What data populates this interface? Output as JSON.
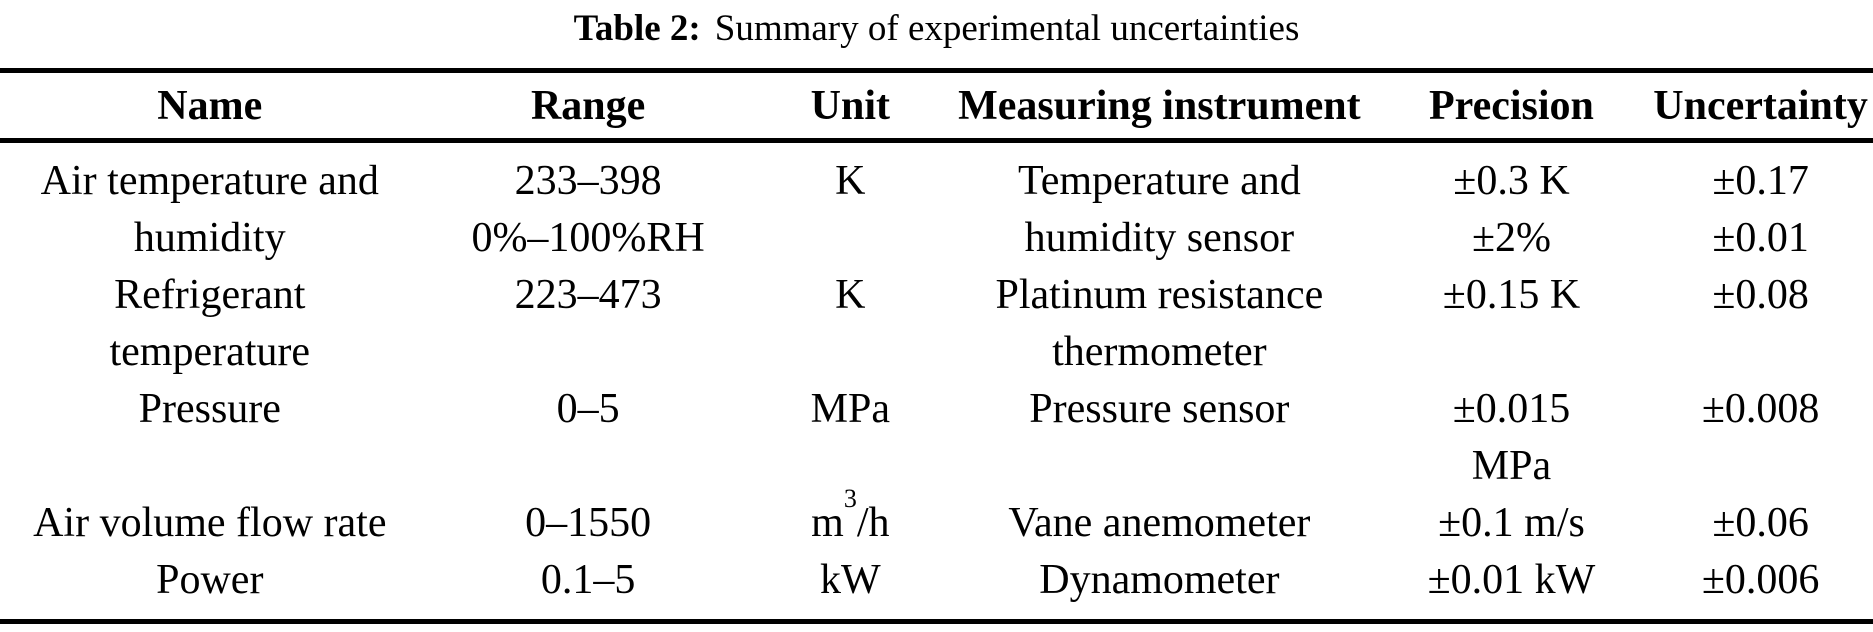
{
  "caption": {
    "label": "Table 2:",
    "text": "Summary of experimental uncertainties"
  },
  "table": {
    "headers": [
      "Name",
      "Range",
      "Unit",
      "Measuring instrument",
      "Precision",
      "Uncertainty"
    ],
    "rows": [
      {
        "name": [
          "Air temperature and",
          "humidity"
        ],
        "range": [
          "233–398",
          "0%–100%RH"
        ],
        "unit": [
          "K"
        ],
        "instrument": [
          "Temperature and",
          "humidity sensor"
        ],
        "precision": [
          "±0.3 K",
          "±2%"
        ],
        "uncertainty": [
          "±0.17",
          "±0.01"
        ]
      },
      {
        "name": [
          "Refrigerant",
          "temperature"
        ],
        "range": [
          "223–473"
        ],
        "unit": [
          "K"
        ],
        "instrument": [
          "Platinum resistance",
          "thermometer"
        ],
        "precision": [
          "±0.15 K"
        ],
        "uncertainty": [
          "±0.08"
        ]
      },
      {
        "name": [
          "Pressure"
        ],
        "range": [
          "0–5"
        ],
        "unit": [
          "MPa"
        ],
        "instrument": [
          "Pressure sensor"
        ],
        "precision": [
          "±0.015",
          "MPa"
        ],
        "uncertainty": [
          "±0.008"
        ]
      },
      {
        "name": [
          "Air volume flow rate"
        ],
        "range": [
          "0–1550"
        ],
        "unit_parts": {
          "base": "m",
          "sup": "3",
          "rest": "/h"
        },
        "instrument": [
          "Vane anemometer"
        ],
        "precision": [
          "±0.1 m/s"
        ],
        "uncertainty": [
          "±0.06"
        ]
      },
      {
        "name": [
          "Power"
        ],
        "range": [
          "0.1–5"
        ],
        "unit": [
          "kW"
        ],
        "instrument": [
          "Dynamometer"
        ],
        "precision": [
          "±0.01 kW"
        ],
        "uncertainty": [
          "±0.006"
        ]
      }
    ]
  }
}
